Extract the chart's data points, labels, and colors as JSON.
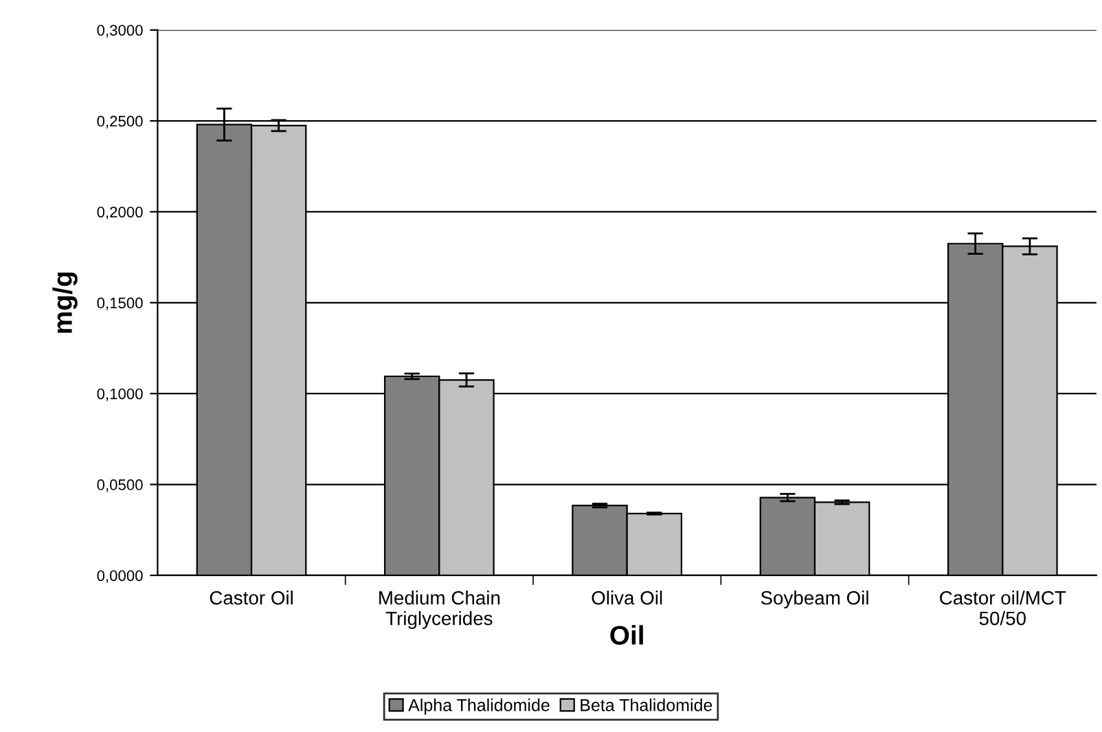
{
  "chart_data": {
    "type": "bar",
    "xlabel": "Oil",
    "ylabel": "mg/g",
    "categories": [
      "Castor Oil",
      "Medium Chain\nTriglycerides",
      "Oliva Oil",
      "Soybeam Oil",
      "Castor oil/MCT\n50/50"
    ],
    "series": [
      {
        "name": "Alpha Thalidomide",
        "color": "#808080",
        "values": [
          0.248,
          0.1095,
          0.0384,
          0.0428,
          0.1825
        ],
        "errors": [
          0.0088,
          0.0015,
          0.001,
          0.002,
          0.0056
        ]
      },
      {
        "name": "Beta Thalidomide",
        "color": "#c0c0c0",
        "values": [
          0.2474,
          0.1075,
          0.034,
          0.0402,
          0.181
        ],
        "errors": [
          0.003,
          0.0036,
          0.0005,
          0.001,
          0.0044
        ]
      }
    ],
    "ylim": [
      0,
      0.3
    ],
    "yticks": [
      {
        "value": 0,
        "label": "0,0000"
      },
      {
        "value": 0.05,
        "label": "0,0500"
      },
      {
        "value": 0.1,
        "label": "0,1000"
      },
      {
        "value": 0.15,
        "label": "0,1500"
      },
      {
        "value": 0.2,
        "label": "0,2000"
      },
      {
        "value": 0.25,
        "label": "0,2500"
      },
      {
        "value": 0.3,
        "label": "0,3000"
      }
    ],
    "grid": "y",
    "legend": "bottom"
  }
}
